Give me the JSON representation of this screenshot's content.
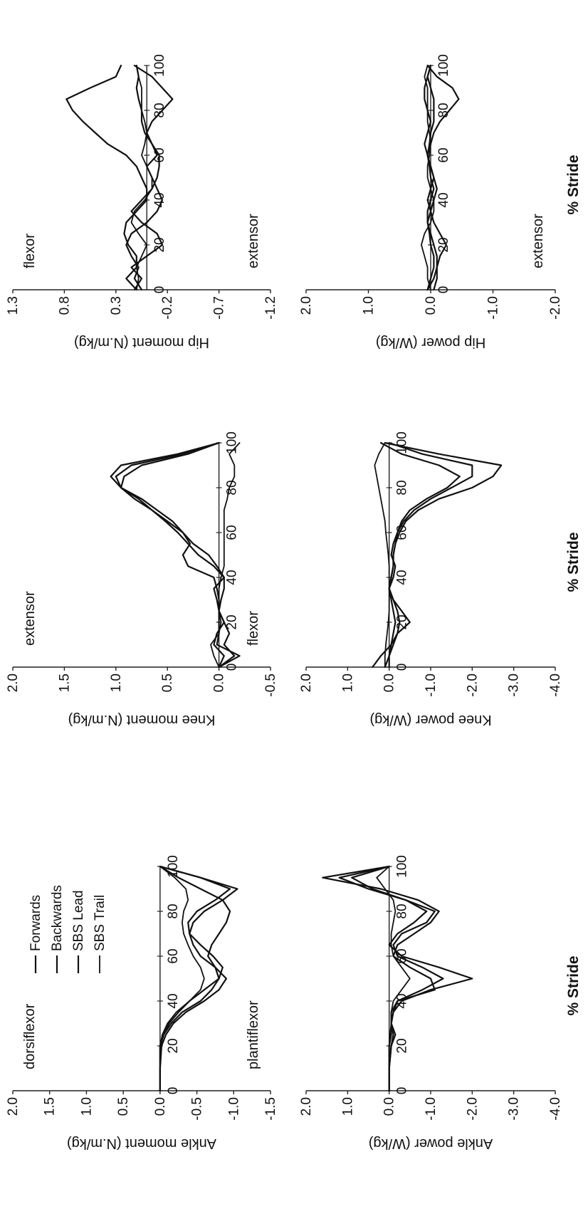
{
  "figure": {
    "x_label": "% Stride",
    "x_ticks": [
      0,
      20,
      40,
      60,
      80,
      100
    ]
  },
  "legend": [
    "Forwards",
    "Backwards",
    "SBS Lead",
    "SBS Trail"
  ],
  "colors": {
    "line": "#111111",
    "axis": "#222222"
  },
  "chart_data": [
    {
      "type": "line",
      "id": "ankle_moment",
      "ylabel": "Ankle moment (N.m/kg)",
      "ylim": [
        -1.5,
        2.0
      ],
      "yticks": [
        "2.0",
        "1.5",
        "1.0",
        "0.5",
        "0.0",
        "-0.5",
        "-1.0",
        "-1.5"
      ],
      "annot_pos": "dorsiflexor",
      "annot_neg": "plantiflexor",
      "x": [
        0,
        10,
        20,
        25,
        30,
        35,
        40,
        45,
        50,
        55,
        60,
        65,
        70,
        75,
        80,
        85,
        90,
        95,
        100
      ],
      "series": [
        {
          "name": "Forwards",
          "values": [
            0,
            0,
            0,
            -0.05,
            -0.12,
            -0.25,
            -0.4,
            -0.6,
            -0.8,
            -0.85,
            -0.72,
            -0.55,
            -0.4,
            -0.38,
            -0.5,
            -0.75,
            -0.95,
            -0.55,
            0
          ]
        },
        {
          "name": "Backwards",
          "values": [
            0,
            0,
            -0.02,
            -0.08,
            -0.18,
            -0.35,
            -0.6,
            -0.8,
            -0.9,
            -0.75,
            -0.55,
            -0.45,
            -0.4,
            -0.45,
            -0.6,
            -0.85,
            -1.05,
            -0.55,
            0
          ]
        },
        {
          "name": "SBS Lead",
          "values": [
            0,
            0,
            0,
            -0.05,
            -0.15,
            -0.3,
            -0.55,
            -0.7,
            -0.8,
            -0.75,
            -0.65,
            -0.7,
            -0.8,
            -0.9,
            -0.95,
            -0.85,
            -0.55,
            -0.25,
            0
          ]
        },
        {
          "name": "SBS Trail",
          "values": [
            0,
            0,
            0,
            -0.03,
            -0.1,
            -0.22,
            -0.4,
            -0.55,
            -0.6,
            -0.55,
            -0.45,
            -0.38,
            -0.32,
            -0.3,
            -0.32,
            -0.38,
            -0.35,
            -0.2,
            0
          ]
        }
      ]
    },
    {
      "type": "line",
      "id": "knee_moment",
      "ylabel": "Knee moment (N.m/kg)",
      "ylim": [
        -0.5,
        2.0
      ],
      "yticks": [
        "2.0",
        "1.5",
        "1.0",
        "0.5",
        "0.0",
        "-0.5"
      ],
      "annot_pos": "extensor",
      "annot_neg": "flexor",
      "x": [
        0,
        5,
        10,
        15,
        20,
        25,
        30,
        35,
        40,
        45,
        50,
        55,
        60,
        65,
        70,
        75,
        80,
        85,
        90,
        95,
        100
      ],
      "series": [
        {
          "name": "Forwards",
          "values": [
            0,
            -0.05,
            0.05,
            0.02,
            -0.05,
            0,
            0,
            0.02,
            0.05,
            0.3,
            0.35,
            0.28,
            0.35,
            0.45,
            0.6,
            0.75,
            0.95,
            1.05,
            0.95,
            0.4,
            0
          ]
        },
        {
          "name": "Backwards",
          "values": [
            0,
            -0.2,
            0.02,
            0,
            0,
            0,
            0.02,
            0.05,
            -0.05,
            0.05,
            0.2,
            0.3,
            0.4,
            0.52,
            0.65,
            0.78,
            0.95,
            1.0,
            0.85,
            0.35,
            0
          ]
        },
        {
          "name": "SBS Lead",
          "values": [
            0,
            -0.15,
            -0.05,
            -0.1,
            -0.05,
            0,
            -0.02,
            -0.05,
            -0.05,
            0.02,
            0.1,
            0.25,
            0.35,
            0.5,
            0.65,
            0.82,
            0.95,
            0.92,
            0.75,
            0.3,
            0
          ]
        },
        {
          "name": "SBS Trail",
          "values": [
            0,
            0.05,
            0.08,
            0,
            -0.02,
            0,
            0,
            0,
            -0.02,
            -0.05,
            -0.05,
            -0.05,
            -0.05,
            -0.05,
            -0.05,
            -0.08,
            -0.1,
            -0.15,
            -0.15,
            -0.1,
            -0.2
          ]
        }
      ]
    },
    {
      "type": "line",
      "id": "hip_moment",
      "ylabel": "Hip moment (N.m/kg)",
      "ylim": [
        -1.2,
        1.3
      ],
      "yticks": [
        "1.3",
        "0.8",
        "0.3",
        "-0.2",
        "-0.7",
        "-1.2"
      ],
      "annot_pos": "flexor",
      "annot_neg": "extensor",
      "x": [
        0,
        5,
        10,
        15,
        20,
        25,
        30,
        35,
        40,
        45,
        50,
        55,
        60,
        65,
        70,
        75,
        80,
        85,
        90,
        95,
        100
      ],
      "series": [
        {
          "name": "Forwards",
          "values": [
            0.12,
            0.05,
            0.15,
            0.0,
            -0.15,
            -0.1,
            0.05,
            0.15,
            0.05,
            -0.05,
            -0.1,
            -0.12,
            -0.12,
            -0.05,
            0.02,
            0.05,
            0.05,
            0.08,
            0.1,
            0.08,
            0.1
          ]
        },
        {
          "name": "Backwards",
          "values": [
            0.1,
            0.2,
            0.1,
            0.1,
            0.18,
            0.22,
            0.2,
            0.1,
            0.0,
            0.0,
            0.05,
            0.1,
            0.2,
            0.38,
            0.5,
            0.62,
            0.72,
            0.78,
            0.55,
            0.3,
            0.25
          ]
        },
        {
          "name": "SBS Lead",
          "values": [
            0.05,
            0.12,
            0.08,
            0.15,
            0.2,
            0.15,
            0.0,
            -0.1,
            -0.15,
            -0.1,
            -0.05,
            0.0,
            -0.1,
            -0.05,
            0.0,
            -0.05,
            -0.15,
            -0.25,
            -0.15,
            -0.05,
            0.12
          ]
        },
        {
          "name": "SBS Trail",
          "values": [
            0.1,
            0.08,
            0.1,
            0.05,
            0.0,
            0.08,
            0.15,
            0.12,
            0.02,
            -0.05,
            -0.05,
            0.0,
            0.05,
            0.02,
            0.0,
            0.02,
            0.05,
            0.05,
            0.05,
            0.08,
            0.1
          ]
        }
      ]
    },
    {
      "type": "line",
      "id": "ankle_power",
      "ylabel": "Ankle power (W/kg)",
      "ylim": [
        -4.0,
        2.0
      ],
      "yticks": [
        "2.0",
        "1.0",
        "0.0",
        "-1.0",
        "-2.0",
        "-3.0",
        "-4.0"
      ],
      "x": [
        0,
        10,
        20,
        25,
        30,
        35,
        40,
        45,
        50,
        55,
        60,
        65,
        70,
        75,
        80,
        85,
        90,
        95,
        100
      ],
      "series": [
        {
          "name": "Forwards",
          "values": [
            0,
            0,
            -0.05,
            -0.15,
            -0.05,
            -0.1,
            -0.3,
            -1.0,
            -2.0,
            -1.2,
            -0.3,
            0,
            -0.2,
            -0.6,
            -0.9,
            -0.4,
            0.4,
            0.9,
            0
          ]
        },
        {
          "name": "Backwards",
          "values": [
            0,
            0,
            -0.05,
            -0.1,
            -0.05,
            -0.1,
            -0.2,
            -1.1,
            -1.0,
            -0.5,
            -0.1,
            -0.2,
            -0.6,
            -1.0,
            -1.2,
            -0.7,
            0.2,
            1.6,
            0
          ]
        },
        {
          "name": "SBS Lead",
          "values": [
            0,
            0,
            0,
            -0.05,
            -0.05,
            -0.05,
            -0.2,
            -0.8,
            -1.3,
            -0.8,
            -0.2,
            -0.1,
            -0.3,
            -0.9,
            -1.1,
            -0.4,
            0.5,
            1.2,
            0
          ]
        },
        {
          "name": "SBS Trail",
          "values": [
            0,
            0,
            0,
            -0.02,
            -0.05,
            -0.05,
            -0.1,
            -0.3,
            -0.5,
            -0.3,
            -0.1,
            -0.05,
            -0.05,
            -0.1,
            -0.15,
            -0.1,
            0.1,
            0.3,
            0
          ]
        }
      ]
    },
    {
      "type": "line",
      "id": "knee_power",
      "ylabel": "Knee power (W/kg)",
      "ylim": [
        -4.0,
        2.0
      ],
      "yticks": [
        "2.0",
        "1.0",
        "0.0",
        "-1.0",
        "-2.0",
        "-3.0",
        "-4.0"
      ],
      "x": [
        0,
        5,
        10,
        15,
        20,
        25,
        30,
        35,
        40,
        45,
        50,
        55,
        60,
        65,
        70,
        75,
        80,
        85,
        90,
        95,
        100
      ],
      "series": [
        {
          "name": "Forwards",
          "values": [
            0.4,
            0.2,
            -0.05,
            -0.2,
            -0.5,
            -0.3,
            -0.1,
            0,
            -0.1,
            -0.15,
            -0.05,
            -0.1,
            -0.2,
            -0.35,
            -0.6,
            -1.0,
            -1.5,
            -2.0,
            -2.0,
            -0.8,
            0
          ]
        },
        {
          "name": "Backwards",
          "values": [
            0.1,
            0,
            -0.1,
            -0.2,
            -0.25,
            -0.2,
            -0.1,
            0,
            -0.05,
            -0.1,
            -0.1,
            -0.15,
            -0.25,
            -0.4,
            -0.7,
            -1.2,
            -2.0,
            -2.5,
            -2.7,
            -1.2,
            0.1
          ]
        },
        {
          "name": "SBS Lead",
          "values": [
            0,
            0,
            -0.05,
            -0.1,
            -0.15,
            -0.1,
            -0.05,
            0,
            -0.05,
            -0.1,
            -0.1,
            -0.15,
            -0.2,
            -0.3,
            -0.5,
            -0.9,
            -1.4,
            -1.7,
            -1.2,
            -0.3,
            0.2
          ]
        },
        {
          "name": "SBS Trail",
          "values": [
            0.1,
            0.1,
            0.08,
            0.05,
            0.02,
            0,
            0,
            0,
            0,
            0,
            0.02,
            0.05,
            0.08,
            0.1,
            0.15,
            0.2,
            0.25,
            0.3,
            0.35,
            0.25,
            0.1
          ]
        }
      ]
    },
    {
      "type": "line",
      "id": "hip_power",
      "ylabel": "Hip power (W/kg)",
      "ylim": [
        -2.0,
        2.0
      ],
      "yticks": [
        "2.0",
        "1.0",
        "0.0",
        "-1.0",
        "-2.0"
      ],
      "annot_neg": "extensor",
      "x": [
        0,
        5,
        10,
        15,
        20,
        25,
        30,
        35,
        40,
        45,
        50,
        55,
        60,
        65,
        70,
        75,
        80,
        85,
        90,
        95,
        100
      ],
      "series": [
        {
          "name": "Forwards",
          "values": [
            -0.05,
            -0.1,
            -0.1,
            -0.15,
            -0.25,
            -0.15,
            -0.05,
            0,
            0.05,
            0,
            -0.05,
            0,
            0.05,
            0.02,
            0,
            -0.05,
            -0.05,
            -0.05,
            0,
            0.05,
            0
          ]
        },
        {
          "name": "Backwards",
          "values": [
            0.05,
            -0.05,
            -0.1,
            -0.1,
            -0.05,
            0,
            0.05,
            0.05,
            0,
            -0.05,
            0,
            0.02,
            0.05,
            0,
            -0.05,
            -0.15,
            -0.3,
            -0.45,
            -0.35,
            -0.1,
            0.05
          ]
        },
        {
          "name": "SBS Lead",
          "values": [
            0.05,
            0,
            -0.05,
            -0.05,
            0,
            0.02,
            0.05,
            0,
            -0.05,
            -0.1,
            -0.05,
            0,
            0.05,
            0.1,
            0.05,
            0,
            0.05,
            0.1,
            0.1,
            0.05,
            0
          ]
        },
        {
          "name": "SBS Trail",
          "values": [
            0,
            0.05,
            0.05,
            0.1,
            0.15,
            0.1,
            0,
            -0.05,
            -0.05,
            0,
            0.05,
            0.05,
            0.02,
            0,
            0.02,
            0.05,
            0.05,
            0.05,
            0.05,
            0.1,
            0.05
          ]
        }
      ]
    }
  ]
}
